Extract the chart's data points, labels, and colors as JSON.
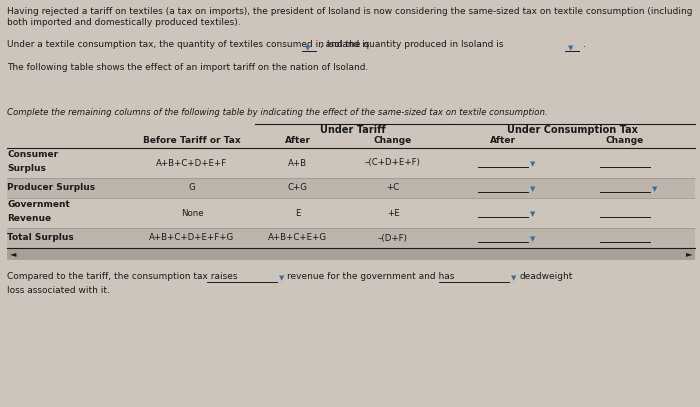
{
  "bg_color": "#cdc5bc",
  "text_color": "#1a1a1a",
  "intro1": "Having rejected a tariff on textiles (a tax on imports), the president of Isoland is now considering the same-sized tax on textile consumption (including",
  "intro2": "both imported and domestically produced textiles).",
  "line2_pre": "Under a textile consumption tax, the quantity of textiles consumed in Isoland is",
  "line2_mid": ", and the quantity produced in Isoland is",
  "line2_end": ".",
  "line3": "The following table shows the effect of an import tariff on the nation of Isoland.",
  "instruction": "Complete the remaining columns of the following table by indicating the effect of the same-sized tax on textile consumption.",
  "group1": "Under Tariff",
  "group2": "Under Consumption Tax",
  "hdr_before": "Before Tariff or Tax",
  "hdr_after": "After",
  "hdr_change": "Change",
  "rows": [
    {
      "label1": "Consumer",
      "label2": "Surplus",
      "before": "A+B+C+D+E+F",
      "after": "A+B",
      "change": "–(C+D+E+F)",
      "cons_after_dropdown": true,
      "cons_change_line": true,
      "cons_change_dropdown": false
    },
    {
      "label1": "Producer Surplus",
      "label2": "",
      "before": "G",
      "after": "C+G",
      "change": "+C",
      "cons_after_dropdown": true,
      "cons_change_line": true,
      "cons_change_dropdown": true
    },
    {
      "label1": "Government",
      "label2": "Revenue",
      "before": "None",
      "after": "E",
      "change": "+E",
      "cons_after_dropdown": true,
      "cons_change_line": true,
      "cons_change_dropdown": false
    },
    {
      "label1": "Total Surplus",
      "label2": "",
      "before": "A+B+C+D+E+F+G",
      "after": "A+B+C+E+G",
      "change": "–(D+F)",
      "cons_after_dropdown": true,
      "cons_change_line": true,
      "cons_change_dropdown": false
    }
  ],
  "footer1": "Compared to the tariff, the consumption tax raises",
  "footer2": "revenue for the government and has",
  "footer3": "deadweight",
  "footer4": "loss associated with it.",
  "drop_color": "#3a6ea5",
  "line_color": "#888888",
  "shade_color": "#bdb5ac"
}
